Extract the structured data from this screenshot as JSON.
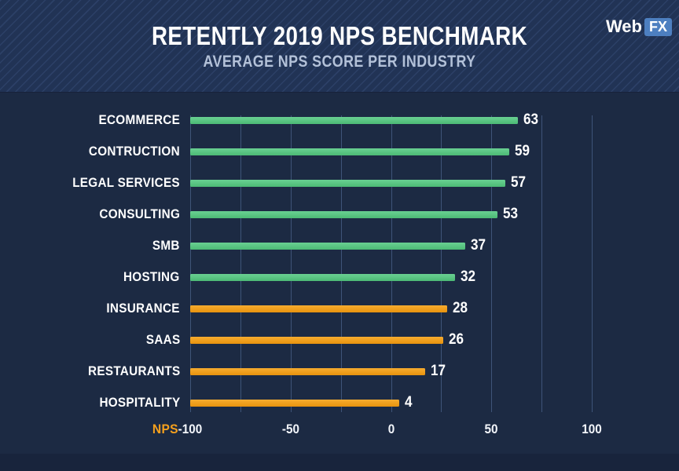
{
  "header": {
    "title": "RETENTLY 2019 NPS BENCHMARK",
    "subtitle": "AVERAGE NPS SCORE PER INDUSTRY",
    "logo": {
      "text": "Web",
      "badge": "FX"
    }
  },
  "chart_data": {
    "type": "bar",
    "orientation": "horizontal",
    "title": "RETENTLY 2019 NPS BENCHMARK",
    "subtitle": "AVERAGE NPS SCORE PER INDUSTRY",
    "categories": [
      "ECOMMERCE",
      "CONTRUCTION",
      "LEGAL SERVICES",
      "CONSULTING",
      "SMB",
      "HOSTING",
      "INSURANCE",
      "SAAS",
      "RESTAURANTS",
      "HOSPITALITY"
    ],
    "values": [
      63,
      59,
      57,
      53,
      37,
      32,
      28,
      26,
      17,
      4
    ],
    "bar_colors": [
      "green",
      "green",
      "green",
      "green",
      "green",
      "green",
      "orange",
      "orange",
      "orange",
      "orange"
    ],
    "x_axis_label": "NPS",
    "x_ticks": [
      -100,
      -50,
      0,
      50,
      100
    ],
    "xlim": [
      -100,
      100
    ],
    "grid": true,
    "grid_interval": 25,
    "legend": false,
    "colors": {
      "green": "#57c783",
      "orange": "#f09c18",
      "background": "#1c2a43",
      "header_background": "#213355",
      "header_stripe": "#2c4067",
      "grid": "#3e5478",
      "subtitle_text": "#b3c1d8",
      "axis_label_orange": "#f5a01d",
      "logo_badge_blue": "#4d7fc0"
    }
  }
}
